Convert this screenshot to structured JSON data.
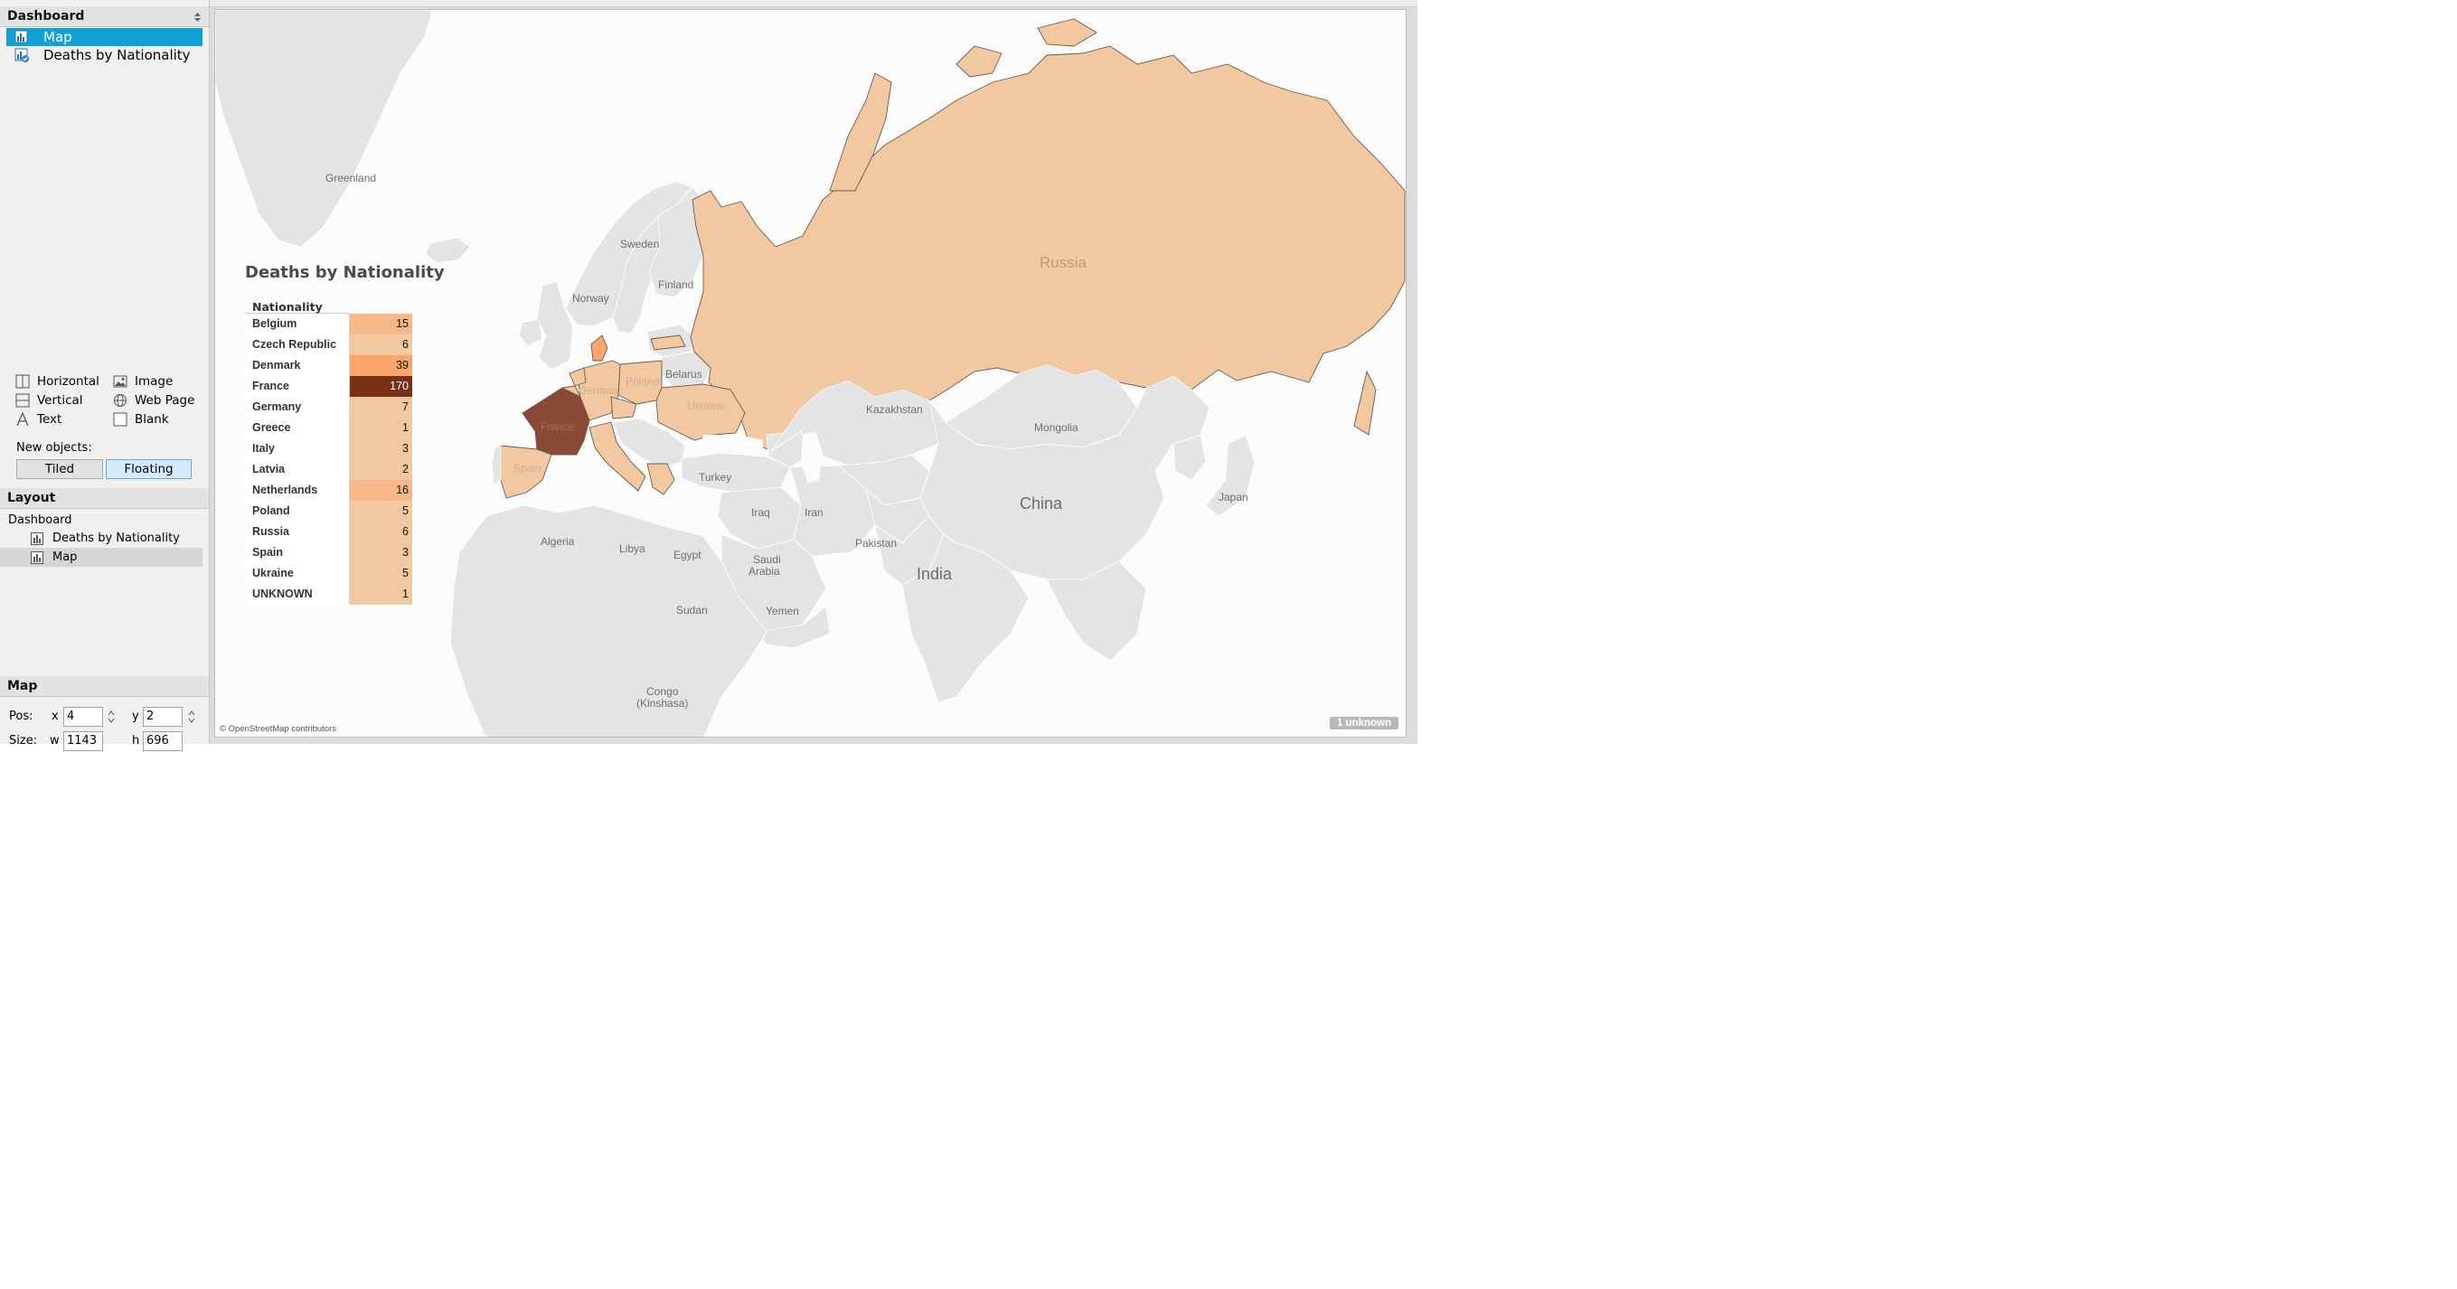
{
  "sidebar": {
    "dashboard_header": "Dashboard",
    "sheets": [
      {
        "label": "Map",
        "selected": true
      },
      {
        "label": "Deaths by Nationality",
        "selected": false
      }
    ],
    "objects": {
      "horizontal": "Horizontal",
      "vertical": "Vertical",
      "text": "Text",
      "image": "Image",
      "web_page": "Web Page",
      "blank": "Blank"
    },
    "new_objects_label": "New objects:",
    "tiled_label": "Tiled",
    "floating_label": "Floating",
    "layout_header": "Layout",
    "layout_tree": {
      "root": "Dashboard",
      "children": [
        "Deaths by Nationality",
        "Map"
      ]
    },
    "map_header": "Map",
    "pos_label": "Pos:",
    "size_label": "Size:",
    "pos_x_label": "x",
    "pos_y_label": "y",
    "pos_x": "4",
    "pos_y": "2",
    "size_w_label": "w",
    "size_h_label": "h",
    "size_w": "1143",
    "size_h": "696"
  },
  "map": {
    "labels": {
      "greenland": "Greenland",
      "sweden": "Sweden",
      "norway": "Norway",
      "finland": "Finland",
      "russia": "Russia",
      "belarus": "Belarus",
      "poland": "Poland",
      "germany": "German",
      "france": "France",
      "spain": "Spain",
      "ukraine": "Ukraine",
      "kazakhstan": "Kazakhstan",
      "mongolia": "Mongolia",
      "turkey": "Turkey",
      "china": "China",
      "japan": "Japan",
      "iraq": "Iraq",
      "iran": "Iran",
      "pakistan": "Pakistan",
      "india": "India",
      "algeria": "Algeria",
      "libya": "Libya",
      "egypt": "Egypt",
      "saudi1": "Saudi",
      "saudi2": "Arabia",
      "yemen": "Yemen",
      "sudan": "Sudan",
      "congo1": "Congo",
      "congo2": "(Kinshasa)"
    },
    "credit": "© OpenStreetMap contributors",
    "unknown_badge": "1 unknown",
    "colors": {
      "low": "#f2c8a0",
      "mid": "#fba56b",
      "high": "#8b4a35",
      "table_max": "#7a3014"
    }
  },
  "table": {
    "title": "Deaths by Nationality",
    "column_header": "Nationality",
    "rows": [
      {
        "nationality": "Belgium",
        "value": "15"
      },
      {
        "nationality": "Czech Republic",
        "value": "6"
      },
      {
        "nationality": "Denmark",
        "value": "39"
      },
      {
        "nationality": "France",
        "value": "170"
      },
      {
        "nationality": "Germany",
        "value": "7"
      },
      {
        "nationality": "Greece",
        "value": "1"
      },
      {
        "nationality": "Italy",
        "value": "3"
      },
      {
        "nationality": "Latvia",
        "value": "2"
      },
      {
        "nationality": "Netherlands",
        "value": "16"
      },
      {
        "nationality": "Poland",
        "value": "5"
      },
      {
        "nationality": "Russia",
        "value": "6"
      },
      {
        "nationality": "Spain",
        "value": "3"
      },
      {
        "nationality": "Ukraine",
        "value": "5"
      },
      {
        "nationality": "UNKNOWN",
        "value": "1"
      }
    ]
  }
}
